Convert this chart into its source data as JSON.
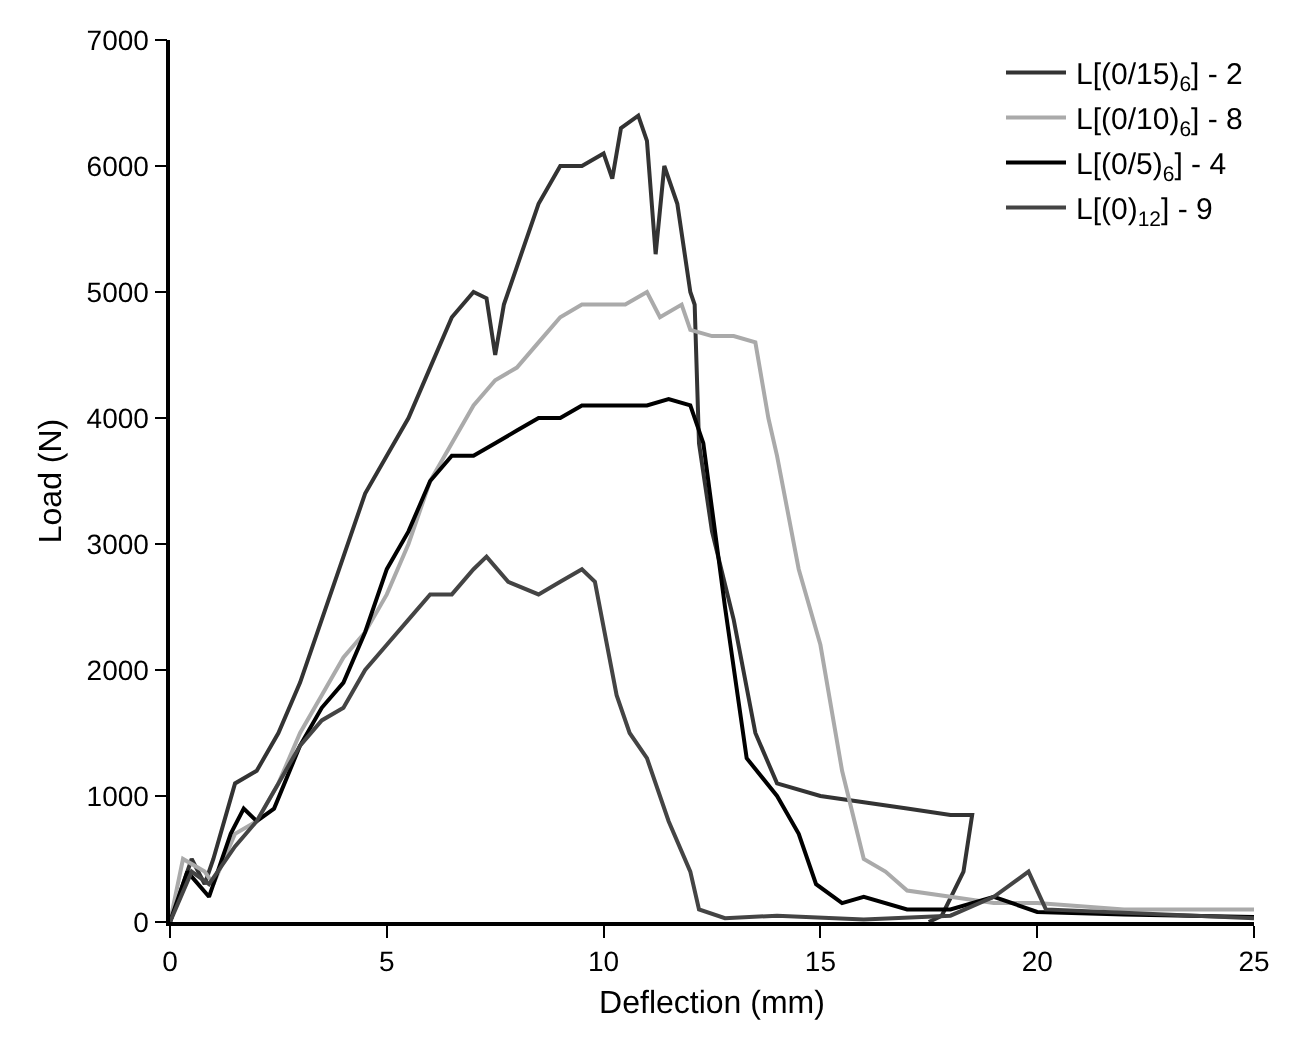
{
  "chart_data": {
    "type": "line",
    "xlabel": "Deflection (mm)",
    "ylabel": "Load (N)",
    "xlim": [
      0,
      25
    ],
    "xticks": [
      0,
      5,
      10,
      15,
      20,
      25
    ],
    "ylim": [
      0,
      7000
    ],
    "yticks": [
      0,
      1000,
      2000,
      3000,
      4000,
      5000,
      6000,
      7000
    ],
    "legend": "top right",
    "marker": "none",
    "line_style": "solid",
    "series": [
      {
        "name": "L[(0/15)$_{6}$] - 2",
        "color": "#333333",
        "x": [
          0,
          0.5,
          0.8,
          1,
          1.5,
          2,
          2.5,
          3,
          3.5,
          4,
          4.5,
          5,
          5.5,
          6,
          6.5,
          7,
          7.3,
          7.5,
          7.7,
          8,
          8.5,
          9,
          9.5,
          10,
          10.2,
          10.4,
          10.8,
          11,
          11.2,
          11.4,
          11.7,
          12,
          12.1,
          12.2,
          12.5,
          13,
          13.5,
          14,
          15,
          16,
          17,
          18,
          18.5,
          18.3,
          17.8,
          17.5
        ],
        "values": [
          0,
          500,
          300,
          500,
          1100,
          1200,
          1500,
          1900,
          2400,
          2900,
          3400,
          3700,
          4000,
          4400,
          4800,
          5000,
          4950,
          4500,
          4900,
          5200,
          5700,
          6000,
          6000,
          6100,
          5900,
          6300,
          6400,
          6200,
          5300,
          6000,
          5700,
          5000,
          4900,
          3800,
          3100,
          2400,
          1500,
          1100,
          1000,
          950,
          900,
          850,
          850,
          400,
          50,
          0
        ]
      },
      {
        "name": "L[(0/10)$_{6}$] - 8",
        "color": "#aaaaaa",
        "x": [
          0,
          0.3,
          0.8,
          1,
          1.5,
          2,
          2.5,
          3,
          3.5,
          4,
          4.5,
          5,
          5.5,
          6,
          6.5,
          7,
          7.5,
          8,
          8.5,
          9,
          9.5,
          10,
          10.5,
          11,
          11.3,
          11.8,
          12,
          12.5,
          13,
          13.5,
          13.8,
          14,
          14.5,
          15,
          15.5,
          16,
          16.5,
          17,
          18,
          19,
          20,
          22,
          25
        ],
        "values": [
          0,
          500,
          400,
          300,
          700,
          800,
          1100,
          1500,
          1800,
          2100,
          2300,
          2600,
          3000,
          3500,
          3800,
          4100,
          4300,
          4400,
          4600,
          4800,
          4900,
          4900,
          4900,
          5000,
          4800,
          4900,
          4700,
          4650,
          4650,
          4600,
          4000,
          3700,
          2800,
          2200,
          1200,
          500,
          400,
          250,
          200,
          150,
          150,
          100,
          100
        ]
      },
      {
        "name": "L[(0/5)$_{6}$] - 4",
        "color": "#000000",
        "x": [
          0,
          0.4,
          0.9,
          1.4,
          1.7,
          2,
          2.4,
          3,
          3.5,
          4,
          4.5,
          5,
          5.5,
          6,
          6.5,
          7,
          7.5,
          8,
          8.5,
          9,
          9.5,
          10,
          10.5,
          11,
          11.5,
          12,
          12.3,
          12.8,
          13.3,
          14,
          14.5,
          14.9,
          15.5,
          16,
          17,
          18,
          19,
          20,
          22,
          25
        ],
        "values": [
          0,
          400,
          200,
          700,
          900,
          800,
          900,
          1400,
          1700,
          1900,
          2300,
          2800,
          3100,
          3500,
          3700,
          3700,
          3800,
          3900,
          4000,
          4000,
          4100,
          4100,
          4100,
          4100,
          4150,
          4100,
          3800,
          2500,
          1300,
          1000,
          700,
          300,
          150,
          200,
          100,
          100,
          200,
          80,
          60,
          40
        ]
      },
      {
        "name": "L[(0)$_{12}$] - 9",
        "color": "#444444",
        "x": [
          0,
          0.5,
          0.9,
          1.5,
          2,
          2.5,
          3,
          3.5,
          4,
          4.5,
          5,
          5.5,
          6,
          6.5,
          7,
          7.3,
          7.8,
          8.5,
          9,
          9.5,
          9.8,
          10.3,
          10.6,
          11,
          11.5,
          12,
          12.2,
          12.8,
          14,
          16,
          18,
          19,
          19.8,
          20.2,
          25
        ],
        "values": [
          0,
          400,
          300,
          600,
          800,
          1100,
          1400,
          1600,
          1700,
          2000,
          2200,
          2400,
          2600,
          2600,
          2800,
          2900,
          2700,
          2600,
          2700,
          2800,
          2700,
          1800,
          1500,
          1300,
          800,
          400,
          100,
          30,
          50,
          20,
          50,
          200,
          400,
          100,
          30
        ]
      }
    ]
  }
}
